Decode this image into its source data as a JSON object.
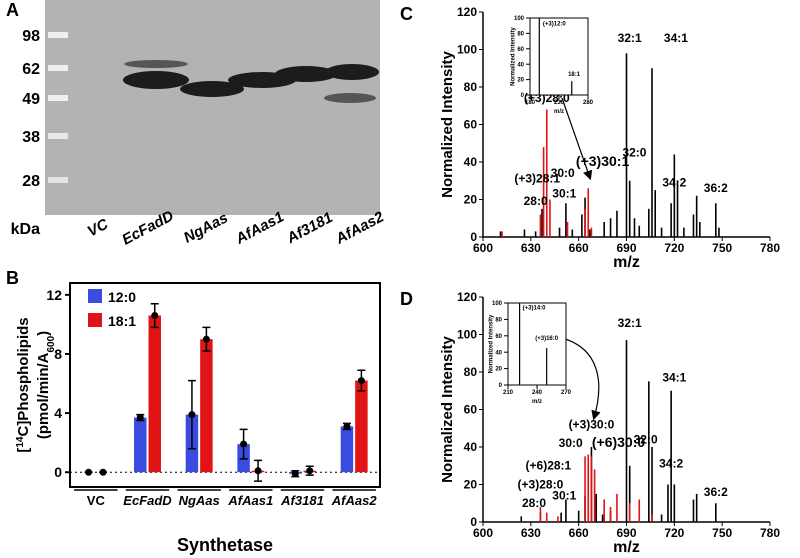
{
  "gel": {
    "label": "A",
    "markers": [
      "98",
      "62",
      "49",
      "38",
      "28"
    ],
    "unit_label": "kDa",
    "lanes": [
      "VC",
      "EcFadD",
      "NgAas",
      "AfAas1",
      "Af3181",
      "AfAas2"
    ]
  },
  "chart_data": [
    {
      "type": "bar",
      "panel_label": "B",
      "ylabel": [
        [
          "[",
          "14",
          "C]Phospholipids"
        ],
        [
          "(pmol/min/A",
          "600",
          ")"
        ]
      ],
      "xlabel": "Synthetase",
      "categories": [
        "VC",
        "EcFadD",
        "NgAas",
        "AfAas1",
        "Af3181",
        "AfAas2"
      ],
      "series": [
        {
          "name": "12:0",
          "color": "#3a4be0",
          "values": [
            0,
            3.7,
            3.9,
            1.9,
            -0.1,
            3.1
          ],
          "errors": [
            0,
            0.2,
            2.3,
            1.0,
            0.2,
            0.2
          ]
        },
        {
          "name": "18:1",
          "color": "#e01414",
          "values": [
            0,
            10.6,
            9.0,
            0.1,
            0.1,
            6.2
          ],
          "errors": [
            0,
            0.8,
            0.8,
            0.7,
            0.3,
            0.7
          ]
        }
      ],
      "ylim": [
        -1,
        12.8
      ],
      "yticks": [
        0,
        4,
        8,
        12
      ],
      "zero_line": true,
      "legend": "top-left"
    },
    {
      "type": "spectrum",
      "panel_label": "C",
      "xlabel": "m/z",
      "ylabel": "Normalized Intensity",
      "xlim": [
        600,
        780
      ],
      "xticks": [
        600,
        630,
        660,
        690,
        720,
        750,
        780
      ],
      "ylim": [
        0,
        120
      ],
      "yticks": [
        0,
        20,
        40,
        60,
        80,
        100,
        120
      ],
      "series": [
        {
          "color": "#000000",
          "x": [
            611,
            626,
            633,
            637,
            648,
            652,
            656,
            662,
            664,
            667,
            676,
            680,
            684,
            690,
            692,
            695,
            698,
            704,
            706,
            708,
            712,
            718,
            720,
            722,
            726,
            732,
            734,
            736,
            746,
            748
          ],
          "values": [
            3,
            4,
            3,
            15,
            5,
            18,
            4,
            12,
            21,
            4,
            8,
            10,
            14,
            98,
            30,
            10,
            6,
            15,
            90,
            25,
            5,
            18,
            44,
            30,
            5,
            12,
            22,
            8,
            18,
            5
          ]
        },
        {
          "color": "#e01414",
          "x": [
            612,
            636,
            638,
            640,
            642,
            653,
            664,
            666,
            668
          ],
          "values": [
            3,
            12,
            48,
            68,
            20,
            8,
            15,
            26,
            5
          ]
        }
      ],
      "annotations": [
        {
          "text": "(+3)28:0",
          "x": 640,
          "y": 72
        },
        {
          "text": "(+3)28:1",
          "x": 634,
          "y": 29
        },
        {
          "text": "28:0",
          "x": 633,
          "y": 17
        },
        {
          "text": "30:0",
          "x": 650,
          "y": 32
        },
        {
          "text": "30:1",
          "x": 651,
          "y": 21
        },
        {
          "text": "(+3)30:1",
          "x": 675,
          "y": 38,
          "color": "#a01010"
        },
        {
          "text": "32:1",
          "x": 692,
          "y": 104
        },
        {
          "text": "32:0",
          "x": 695,
          "y": 43
        },
        {
          "text": "34:1",
          "x": 721,
          "y": 104
        },
        {
          "text": "34:2",
          "x": 720,
          "y": 27
        },
        {
          "text": "36:2",
          "x": 746,
          "y": 24
        }
      ],
      "inset": {
        "xlabel": "m/z",
        "ylabel": "Normalized Intensity",
        "xlim": [
          180,
          280
        ],
        "xticks": [
          180,
          230,
          280
        ],
        "ylim": [
          0,
          100
        ],
        "yticks": [
          0,
          20,
          40,
          60,
          80,
          100
        ],
        "series": [
          {
            "color": "#000000",
            "x": [
              196,
              252
            ],
            "values": [
              100,
              18
            ]
          }
        ],
        "annotations": [
          {
            "text": "(+3)12:0",
            "x": 222,
            "y": 90
          },
          {
            "text": "18:1",
            "x": 256,
            "y": 25
          }
        ]
      }
    },
    {
      "type": "spectrum",
      "panel_label": "D",
      "xlabel": "m/z",
      "ylabel": "Normalized Intensity",
      "xlim": [
        600,
        780
      ],
      "xticks": [
        600,
        630,
        660,
        690,
        720,
        750,
        780
      ],
      "ylim": [
        0,
        120
      ],
      "yticks": [
        0,
        20,
        40,
        60,
        80,
        100,
        120
      ],
      "series": [
        {
          "color": "#000000",
          "x": [
            624,
            636,
            649,
            652,
            660,
            664,
            668,
            671,
            675,
            680,
            690,
            692,
            704,
            706,
            712,
            716,
            718,
            720,
            732,
            734,
            746
          ],
          "values": [
            3,
            5,
            5,
            12,
            6,
            14,
            40,
            15,
            4,
            6,
            97,
            30,
            75,
            40,
            4,
            20,
            70,
            20,
            12,
            15,
            10
          ]
        },
        {
          "color": "#e01414",
          "x": [
            636,
            640,
            647,
            664,
            666,
            668,
            670,
            676,
            680,
            684,
            692,
            698,
            706
          ],
          "values": [
            8,
            5,
            3,
            35,
            36,
            35,
            28,
            12,
            8,
            15,
            10,
            12,
            4
          ]
        }
      ],
      "annotations": [
        {
          "text": "32:1",
          "x": 692,
          "y": 104
        },
        {
          "text": "34:1",
          "x": 720,
          "y": 75
        },
        {
          "text": "32:0",
          "x": 702,
          "y": 42
        },
        {
          "text": "34:2",
          "x": 718,
          "y": 29
        },
        {
          "text": "36:2",
          "x": 746,
          "y": 14
        },
        {
          "text": "(+3)30:0",
          "x": 668,
          "y": 50
        },
        {
          "text": "30:0",
          "x": 655,
          "y": 40
        },
        {
          "text": "(+6)30:0",
          "x": 685,
          "y": 40,
          "color": "#a01010"
        },
        {
          "text": "(+6)28:1",
          "x": 641,
          "y": 28
        },
        {
          "text": "(+3)28:0",
          "x": 636,
          "y": 18
        },
        {
          "text": "28:0",
          "x": 632,
          "y": 8
        },
        {
          "text": "30:1",
          "x": 651,
          "y": 12
        }
      ],
      "inset": {
        "xlabel": "m/z",
        "ylabel": "Normalized Intensity",
        "xlim": [
          210,
          270
        ],
        "xticks": [
          210,
          240,
          270
        ],
        "ylim": [
          0,
          100
        ],
        "yticks": [
          0,
          20,
          40,
          60,
          80,
          100
        ],
        "series": [
          {
            "color": "#000000",
            "x": [
              222,
              250
            ],
            "values": [
              100,
              45
            ]
          }
        ],
        "annotations": [
          {
            "text": "(+3)14:0",
            "x": 237,
            "y": 92
          },
          {
            "text": "(+3)16:0",
            "x": 250,
            "y": 55
          }
        ]
      }
    }
  ]
}
